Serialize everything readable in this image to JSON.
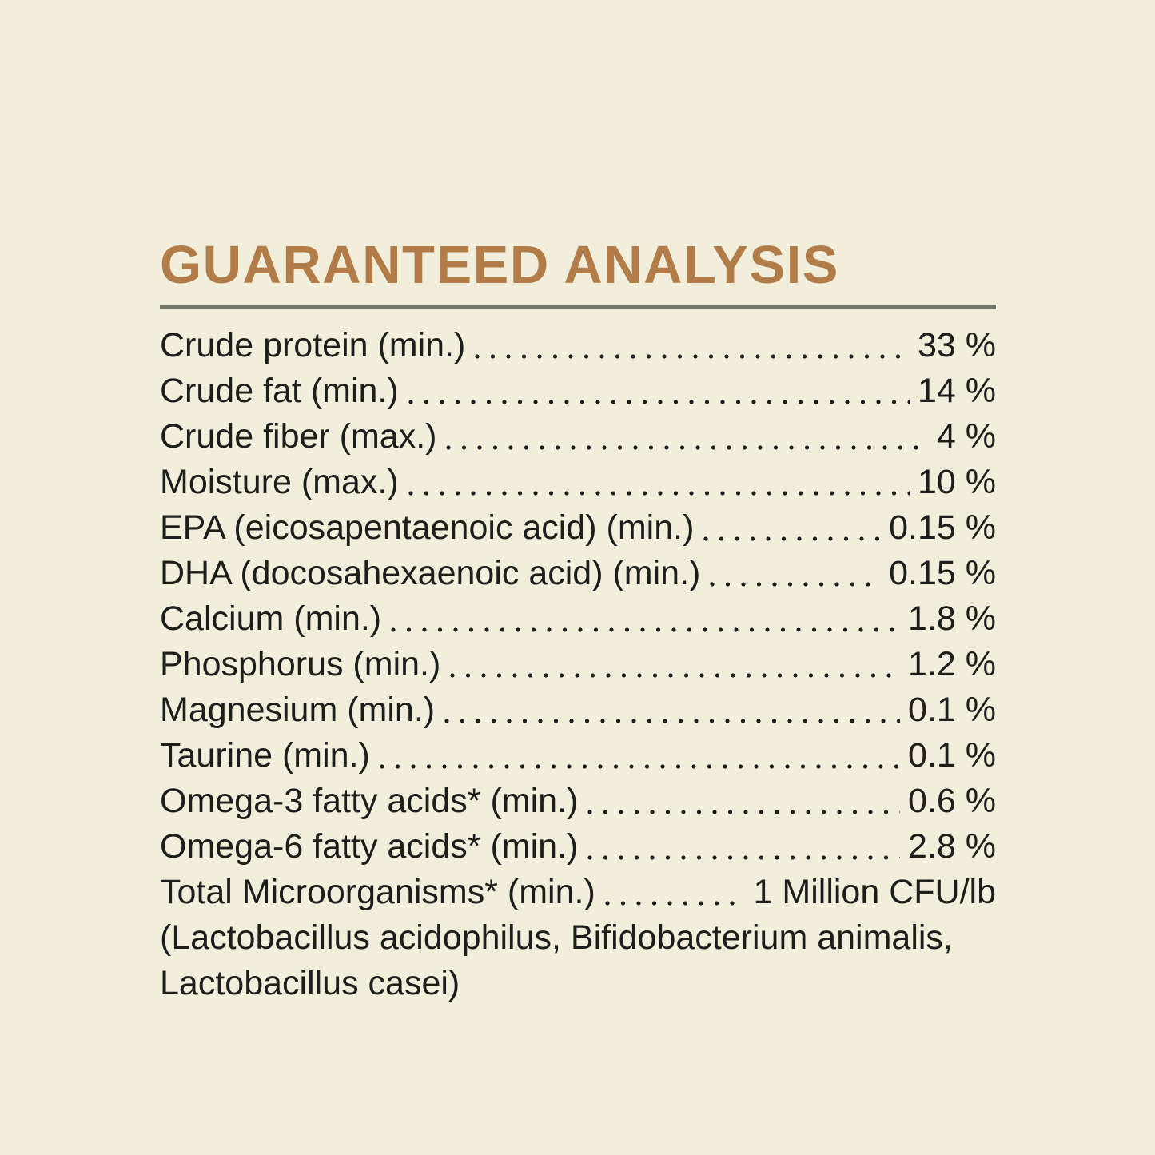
{
  "page": {
    "background_color": "#f1efdc",
    "text_color": "#1d1d1b"
  },
  "header": {
    "title": "GUARANTEED ANALYSIS",
    "title_color": "#b17c48",
    "divider_color": "#75766b"
  },
  "analysis": {
    "rows": [
      {
        "label": "Crude protein (min.)",
        "value": "33 %"
      },
      {
        "label": "Crude fat (min.)",
        "value": "14 %"
      },
      {
        "label": "Crude fiber (max.)",
        "value": "4 %"
      },
      {
        "label": "Moisture (max.)",
        "value": "10 %"
      },
      {
        "label": "EPA (eicosapentaenoic acid) (min.)",
        "value": "0.15 %"
      },
      {
        "label": "DHA (docosahexaenoic acid) (min.)",
        "value": "0.15 %"
      },
      {
        "label": "Calcium (min.)",
        "value": "1.8 %"
      },
      {
        "label": "Phosphorus (min.)",
        "value": "1.2 %"
      },
      {
        "label": "Magnesium (min.)",
        "value": "0.1 %"
      },
      {
        "label": "Taurine (min.)",
        "value": "0.1 %"
      },
      {
        "label": "Omega-3 fatty acids* (min.)",
        "value": "0.6 %"
      },
      {
        "label": "Omega-6 fatty acids* (min.)",
        "value": "2.8 %"
      },
      {
        "label": "Total Microorganisms* (min.)",
        "value": "1 Million CFU/lb"
      }
    ],
    "footnote_lines": [
      "(Lactobacillus acidophilus, Bifidobacterium animalis,",
      "Lactobacillus casei)"
    ]
  }
}
